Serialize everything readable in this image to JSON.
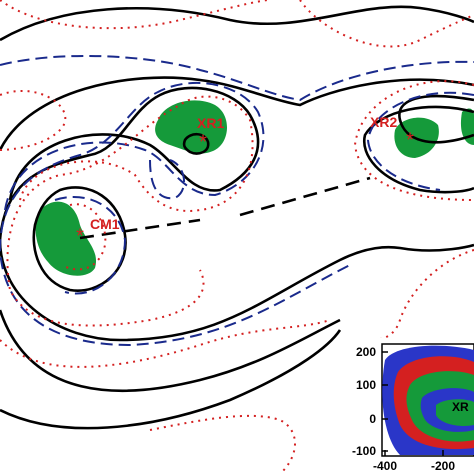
{
  "markers": [
    {
      "label": "CM1"
    },
    {
      "label": "XR1"
    },
    {
      "label": "XR2"
    }
  ],
  "inset": {
    "label": "XR",
    "yticks": [
      "200",
      "100",
      "0",
      "-100"
    ],
    "xticks": [
      "-400",
      "-200"
    ]
  }
}
